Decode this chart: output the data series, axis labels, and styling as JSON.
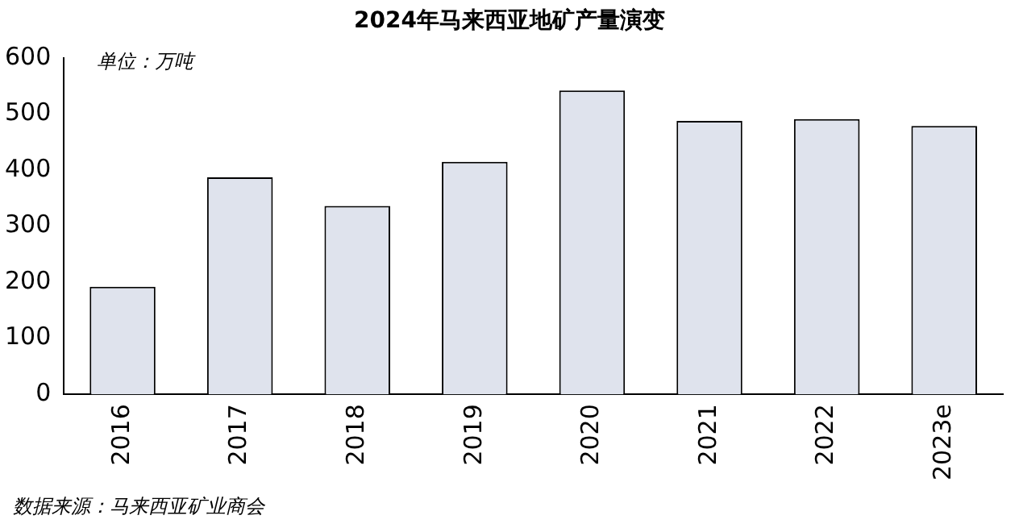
{
  "chart_data": {
    "type": "bar",
    "title": "2024年马来西亚地矿产量演变",
    "ylabel": "单位：万吨",
    "annotations": [
      "数据来源：马来西亚矿业商会"
    ],
    "categories": [
      "2016",
      "2017",
      "2018",
      "2019",
      "2020",
      "2021",
      "2022",
      "2023e"
    ],
    "values": [
      192,
      387,
      336,
      415,
      542,
      488,
      491,
      479
    ],
    "color": "#dfe3ed",
    "ylim": [
      0,
      600
    ],
    "yticks": [
      0,
      100,
      200,
      300,
      400,
      500,
      600
    ],
    "grid": false,
    "legend": false
  }
}
